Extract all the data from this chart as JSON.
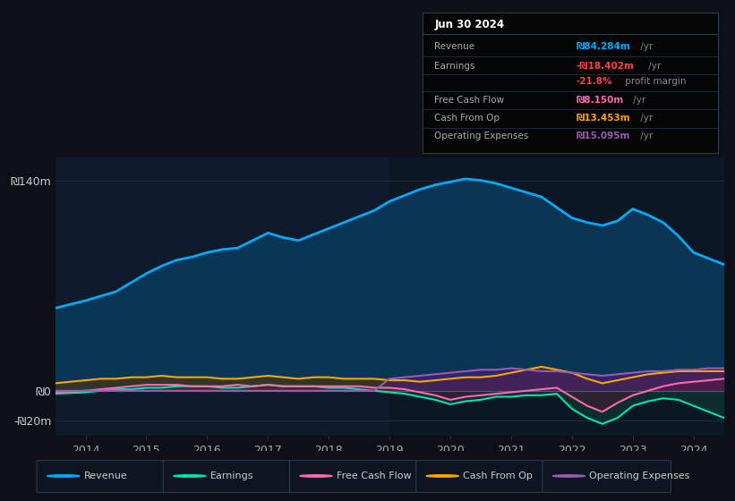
{
  "bg_color": "#0d1117",
  "plot_bg_color": "#0d1b2a",
  "years": [
    2013.5,
    2014.0,
    2014.25,
    2014.5,
    2014.75,
    2015.0,
    2015.25,
    2015.5,
    2015.75,
    2016.0,
    2016.25,
    2016.5,
    2016.75,
    2017.0,
    2017.25,
    2017.5,
    2017.75,
    2018.0,
    2018.25,
    2018.5,
    2018.75,
    2019.0,
    2019.25,
    2019.5,
    2019.75,
    2020.0,
    2020.25,
    2020.5,
    2020.75,
    2021.0,
    2021.25,
    2021.5,
    2021.75,
    2022.0,
    2022.25,
    2022.5,
    2022.75,
    2023.0,
    2023.25,
    2023.5,
    2023.75,
    2024.0,
    2024.25,
    2024.5
  ],
  "revenue": [
    55,
    60,
    63,
    66,
    72,
    78,
    83,
    87,
    89,
    92,
    94,
    95,
    100,
    105,
    102,
    100,
    104,
    108,
    112,
    116,
    120,
    126,
    130,
    134,
    137,
    139,
    141,
    140,
    138,
    135,
    132,
    129,
    122,
    115,
    112,
    110,
    113,
    121,
    117,
    112,
    103,
    92,
    88,
    84
  ],
  "earnings": [
    -2,
    -1,
    0,
    1,
    1,
    2,
    2,
    3,
    3,
    3,
    2,
    2,
    3,
    4,
    3,
    3,
    3,
    2,
    2,
    1,
    0,
    -1,
    -2,
    -4,
    -6,
    -9,
    -7,
    -6,
    -4,
    -4,
    -3,
    -3,
    -2,
    -12,
    -18,
    -22,
    -18,
    -10,
    -7,
    -5,
    -6,
    -10,
    -14,
    -18
  ],
  "free_cash_flow": [
    -1,
    0,
    1,
    2,
    3,
    4,
    4,
    4,
    3,
    3,
    3,
    4,
    3,
    4,
    3,
    3,
    3,
    3,
    3,
    3,
    2,
    2,
    1,
    -1,
    -3,
    -6,
    -4,
    -3,
    -2,
    -1,
    0,
    1,
    2,
    -4,
    -10,
    -14,
    -8,
    -3,
    0,
    3,
    5,
    6,
    7,
    8
  ],
  "cash_from_op": [
    5,
    7,
    8,
    8,
    9,
    9,
    10,
    9,
    9,
    9,
    8,
    8,
    9,
    10,
    9,
    8,
    9,
    9,
    8,
    8,
    8,
    7,
    7,
    6,
    7,
    8,
    9,
    9,
    10,
    12,
    14,
    16,
    14,
    12,
    8,
    5,
    7,
    9,
    11,
    12,
    13,
    13,
    13,
    13
  ],
  "operating_expenses": [
    0,
    0,
    0,
    0,
    0,
    0,
    0,
    0,
    0,
    0,
    0,
    0,
    0,
    0,
    0,
    0,
    0,
    0,
    0,
    0,
    0,
    8,
    9,
    10,
    11,
    12,
    13,
    14,
    14,
    15,
    14,
    13,
    13,
    12,
    11,
    10,
    11,
    12,
    13,
    13,
    14,
    14,
    15,
    15
  ],
  "revenue_color": "#00aaff",
  "earnings_color": "#00e5b0",
  "free_cash_flow_color": "#ff69b4",
  "cash_from_op_color": "#ffa500",
  "operating_expenses_color": "#9b59b6",
  "revenue_fill": "#0a3a5a",
  "earnings_fill": "#0d3d35",
  "free_cash_flow_fill": "#5a1535",
  "cash_from_op_fill": "#5a3500",
  "operating_expenses_fill": "#4a1a7a",
  "ylim_min": -30,
  "ylim_max": 155,
  "xlabel_years": [
    "2014",
    "2015",
    "2016",
    "2017",
    "2018",
    "2019",
    "2020",
    "2021",
    "2022",
    "2023",
    "2024"
  ],
  "x_tick_positions": [
    2014,
    2015,
    2016,
    2017,
    2018,
    2019,
    2020,
    2021,
    2022,
    2023,
    2024
  ],
  "legend_items": [
    {
      "label": "Revenue",
      "color": "#00aaff"
    },
    {
      "label": "Earnings",
      "color": "#00e5b0"
    },
    {
      "label": "Free Cash Flow",
      "color": "#ff69b4"
    },
    {
      "label": "Cash From Op",
      "color": "#ffa500"
    },
    {
      "label": "Operating Expenses",
      "color": "#9b59b6"
    }
  ],
  "info": {
    "date": "Jun 30 2024",
    "rows": [
      {
        "label": "Revenue",
        "value": "₪84.284m",
        "suffix": " /yr",
        "color": "#00aaff"
      },
      {
        "label": "Earnings",
        "value": "-₪18.402m",
        "suffix": " /yr",
        "color": "#ff4444"
      },
      {
        "label": "",
        "value": "-21.8%",
        "suffix": " profit margin",
        "color": "#ff4444"
      },
      {
        "label": "Free Cash Flow",
        "value": "₪8.150m",
        "suffix": " /yr",
        "color": "#ff69b4"
      },
      {
        "label": "Cash From Op",
        "value": "₪13.453m",
        "suffix": " /yr",
        "color": "#ffa500"
      },
      {
        "label": "Operating Expenses",
        "value": "₪15.095m",
        "suffix": " /yr",
        "color": "#9b59b6"
      }
    ]
  }
}
